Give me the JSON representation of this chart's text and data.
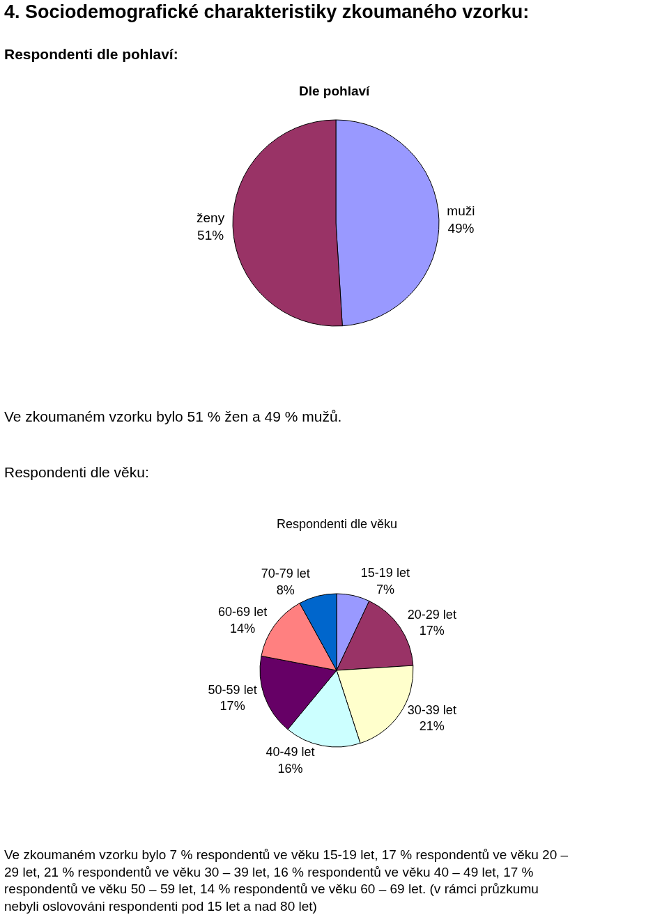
{
  "chart_data": [
    {
      "type": "pie",
      "title": "Dle pohlaví",
      "categories": [
        "muži",
        "ženy"
      ],
      "values": [
        49,
        51
      ],
      "value_labels": [
        "49%",
        "51%"
      ],
      "colors": [
        "#9999ff",
        "#993366"
      ],
      "legend": false,
      "annotations": [
        "4. Sociodemografické charakteristiky zkoumaného vzorku:",
        "Respondenti dle pohlaví:",
        "Ve zkoumaném vzorku bylo 51 % žen a 49 % mužů."
      ]
    },
    {
      "type": "pie",
      "title": "Respondenti dle věku",
      "categories": [
        "15-19 let",
        "20-29 let",
        "30-39 let",
        "40-49 let",
        "50-59 let",
        "60-69 let",
        "70-79 let"
      ],
      "values": [
        7,
        17,
        21,
        16,
        17,
        14,
        8
      ],
      "value_labels": [
        "7%",
        "17%",
        "21%",
        "16%",
        "17%",
        "14%",
        "8%"
      ],
      "colors": [
        "#9999ff",
        "#993366",
        "#ffffcc",
        "#ccffff",
        "#660066",
        "#ff8080",
        "#0066cc"
      ],
      "legend": false,
      "annotations": [
        "Respondenti dle věku:",
        "Ve zkoumaném vzorku bylo 7 % respondentů ve věku 15-19 let, 17 % respondentů ve věku 20 – 29 let, 21 % respondentů ve věku 30 – 39 let, 16 % respondentů ve věku 40 – 49 let, 17 % respondentů ve věku 50 – 59 let, 14 % respondentů ve věku 60 – 69 let. (v rámci průzkumu nebyli oslovováni respondenti pod 15 let a nad 80 let)"
      ]
    }
  ]
}
